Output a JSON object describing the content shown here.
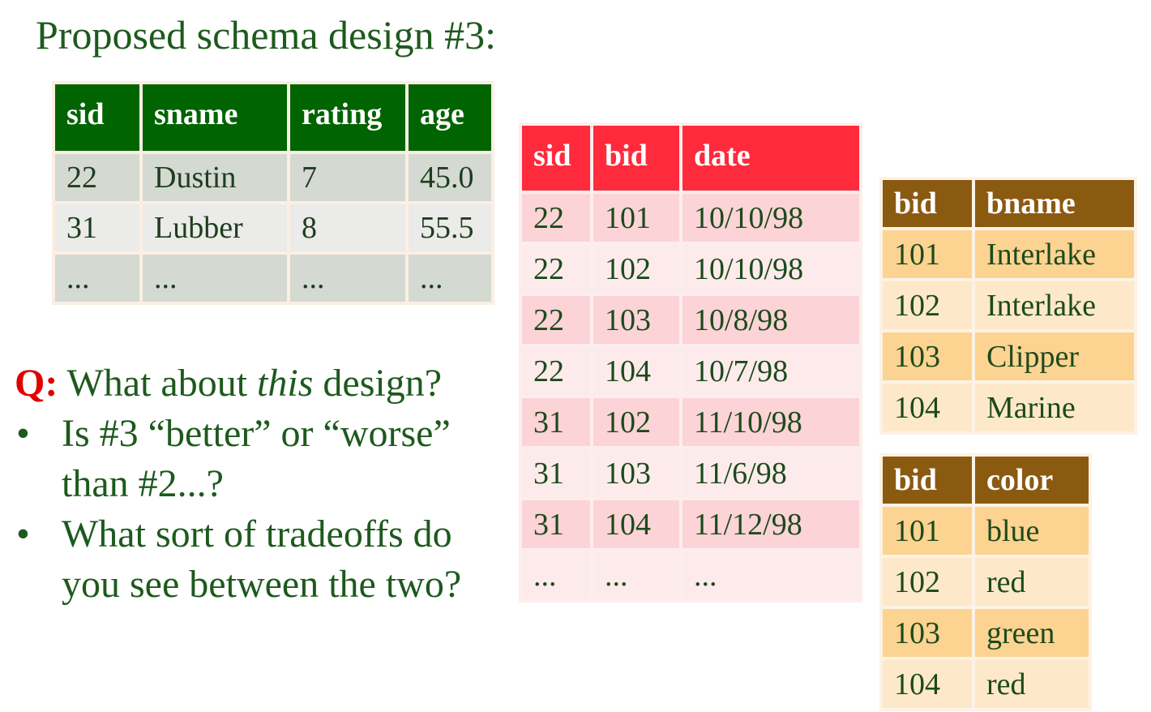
{
  "title": "Proposed schema design #3:",
  "sailors": {
    "headers": [
      "sid",
      "sname",
      "rating",
      "age"
    ],
    "rows": [
      [
        "22",
        "Dustin",
        "7",
        "45.0"
      ],
      [
        "31",
        "Lubber",
        "8",
        "55.5"
      ],
      [
        "...",
        "...",
        "...",
        "..."
      ]
    ]
  },
  "reserves": {
    "headers": [
      "sid",
      "bid",
      "date"
    ],
    "rows": [
      [
        "22",
        "101",
        "10/10/98"
      ],
      [
        "22",
        "102",
        "10/10/98"
      ],
      [
        "22",
        "103",
        "10/8/98"
      ],
      [
        "22",
        "104",
        "10/7/98"
      ],
      [
        "31",
        "102",
        "11/10/98"
      ],
      [
        "31",
        "103",
        "11/6/98"
      ],
      [
        "31",
        "104",
        "11/12/98"
      ],
      [
        "...",
        "...",
        "..."
      ]
    ]
  },
  "boats_name": {
    "headers": [
      "bid",
      "bname"
    ],
    "rows": [
      [
        "101",
        "Interlake"
      ],
      [
        "102",
        "Interlake"
      ],
      [
        "103",
        "Clipper"
      ],
      [
        "104",
        "Marine"
      ]
    ]
  },
  "boats_color": {
    "headers": [
      "bid",
      "color"
    ],
    "rows": [
      [
        "101",
        "blue"
      ],
      [
        "102",
        "red"
      ],
      [
        "103",
        "green"
      ],
      [
        "104",
        "red"
      ]
    ]
  },
  "question": {
    "q_label": "Q:",
    "q_text_before": " What about ",
    "q_text_italic": "this",
    "q_text_after": " design?",
    "bullet_symbol": "•",
    "bullet1_line1": "Is #3 “better” or “worse”",
    "bullet1_line2": "than #2...?",
    "bullet2_line1": "What sort of tradeoffs do",
    "bullet2_line2": "you see between the two?"
  }
}
